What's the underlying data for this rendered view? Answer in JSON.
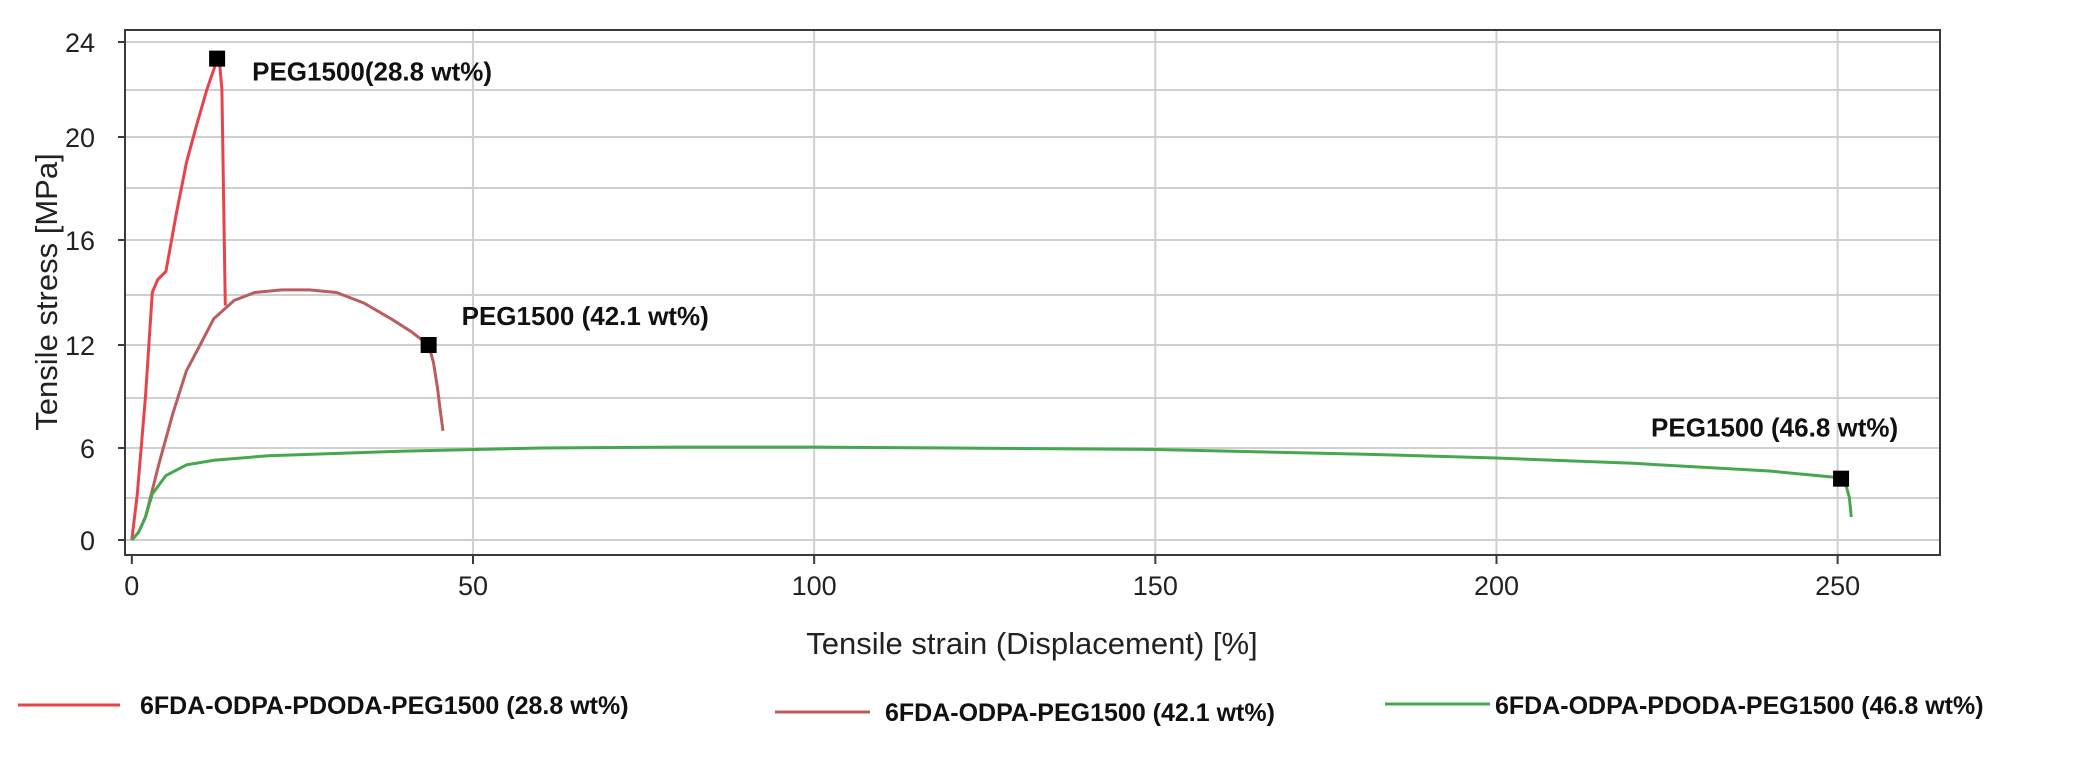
{
  "chart_data": {
    "type": "line",
    "xlabel": "Tensile strain (Displacement) [%]",
    "ylabel": "Tensile stress [MPa]",
    "xlim": [
      -1,
      265
    ],
    "ylim": [
      -1,
      24.5
    ],
    "xticks": [
      0,
      50,
      100,
      150,
      200,
      250
    ],
    "yticks": [
      0,
      6,
      12,
      16,
      20,
      24
    ],
    "grid": true,
    "legend_position": "bottom",
    "series": [
      {
        "name": "6FDA-ODPA-PDODA-PEG1500 (28.8 wt%)",
        "color": "#e8434a",
        "endpoint_label": "PEG1500(28.8 wt%)",
        "endpoint": [
          12.5,
          23.3
        ],
        "x": [
          0,
          0.8,
          2,
          3,
          3.8,
          5,
          6.5,
          8,
          9.5,
          11,
          12.2,
          12.8,
          13.2,
          13.7
        ],
        "y": [
          0,
          3,
          9,
          14,
          14.5,
          14.8,
          17,
          19,
          20.5,
          22,
          23,
          23.3,
          22,
          13.5
        ]
      },
      {
        "name": "6FDA-ODPA-PEG1500 (42.1 wt%)",
        "color": "#bb5d5f",
        "endpoint_label": "PEG1500 (42.1 wt%)",
        "endpoint": [
          43.5,
          12
        ],
        "x": [
          0,
          1,
          2,
          4,
          6,
          8,
          10,
          12,
          15,
          18,
          22,
          26,
          30,
          34,
          38,
          41,
          43.5,
          44.2,
          44.8,
          45.2,
          45.6
        ],
        "y": [
          0,
          0.5,
          1.5,
          5,
          8,
          10.5,
          12,
          13,
          13.7,
          14,
          14.1,
          14.1,
          14,
          13.6,
          13,
          12.5,
          12,
          11,
          9.5,
          8.2,
          7
        ]
      },
      {
        "name": "6FDA-ODPA-PDODA-PEG1500 (46.8 wt%)",
        "color": "#45a84e",
        "endpoint_label": "PEG1500 (46.8 wt%)",
        "endpoint": [
          250.5,
          4
        ],
        "x": [
          0,
          1,
          2,
          3,
          5,
          8,
          12,
          20,
          40,
          60,
          80,
          100,
          120,
          150,
          180,
          200,
          220,
          240,
          250.5,
          251.2,
          251.7,
          252
        ],
        "y": [
          0,
          0.5,
          1.5,
          3,
          4.2,
          4.9,
          5.2,
          5.5,
          5.8,
          6,
          6.05,
          6.05,
          6,
          5.9,
          5.6,
          5.35,
          5,
          4.5,
          4.05,
          3.6,
          2.8,
          1.5
        ]
      }
    ]
  }
}
